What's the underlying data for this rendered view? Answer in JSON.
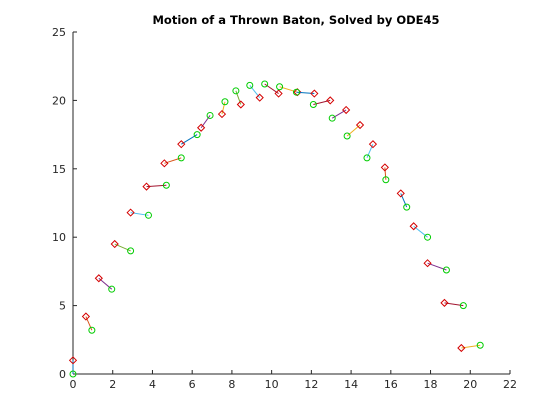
{
  "chart_data": {
    "type": "line",
    "title": "Motion of a Thrown Baton, Solved by ODE45",
    "xlabel": "",
    "ylabel": "",
    "xlim": [
      0,
      22
    ],
    "ylim": [
      0,
      25
    ],
    "xticks": [
      0,
      2,
      4,
      6,
      8,
      10,
      12,
      14,
      16,
      18,
      20,
      22
    ],
    "yticks": [
      0,
      5,
      10,
      15,
      20,
      25
    ],
    "grid": false,
    "box": "open-top-right",
    "marker_colors": {
      "end_a": "#d40000",
      "end_b": "#00cc00"
    },
    "segments": [
      {
        "a": [
          0.0,
          1.0
        ],
        "b": [
          0.0,
          0.0
        ],
        "color": "#0072bd"
      },
      {
        "a": [
          0.65,
          4.2
        ],
        "b": [
          0.95,
          3.2
        ],
        "color": "#d95319"
      },
      {
        "a": [
          1.3,
          7.0
        ],
        "b": [
          1.95,
          6.2
        ],
        "color": "#7e2f8e"
      },
      {
        "a": [
          2.1,
          9.5
        ],
        "b": [
          2.9,
          9.0
        ],
        "color": "#77ac30"
      },
      {
        "a": [
          2.9,
          11.8
        ],
        "b": [
          3.8,
          11.6
        ],
        "color": "#4dbeee"
      },
      {
        "a": [
          3.7,
          13.7
        ],
        "b": [
          4.7,
          13.8
        ],
        "color": "#a2142f"
      },
      {
        "a": [
          4.6,
          15.4
        ],
        "b": [
          5.45,
          15.8
        ],
        "color": "#d95319"
      },
      {
        "a": [
          5.45,
          16.8
        ],
        "b": [
          6.25,
          17.5
        ],
        "color": "#0072bd"
      },
      {
        "a": [
          6.45,
          18.0
        ],
        "b": [
          6.9,
          18.9
        ],
        "color": "#7e2f8e"
      },
      {
        "a": [
          7.5,
          19.0
        ],
        "b": [
          7.65,
          19.9
        ],
        "color": "#edb120"
      },
      {
        "a": [
          8.45,
          19.7
        ],
        "b": [
          8.2,
          20.7
        ],
        "color": "#77ac30"
      },
      {
        "a": [
          9.4,
          20.2
        ],
        "b": [
          8.9,
          21.1
        ],
        "color": "#4dbeee"
      },
      {
        "a": [
          10.35,
          20.5
        ],
        "b": [
          9.65,
          21.2
        ],
        "color": "#a2142f"
      },
      {
        "a": [
          11.3,
          20.6
        ],
        "b": [
          10.4,
          21.0
        ],
        "color": "#edb120"
      },
      {
        "a": [
          12.15,
          20.5
        ],
        "b": [
          11.25,
          20.6
        ],
        "color": "#0072bd"
      },
      {
        "a": [
          12.95,
          20.0
        ],
        "b": [
          12.1,
          19.7
        ],
        "color": "#a2142f"
      },
      {
        "a": [
          13.75,
          19.3
        ],
        "b": [
          13.05,
          18.7
        ],
        "color": "#7e2f8e"
      },
      {
        "a": [
          14.45,
          18.2
        ],
        "b": [
          13.8,
          17.4
        ],
        "color": "#edb120"
      },
      {
        "a": [
          15.1,
          16.8
        ],
        "b": [
          14.8,
          15.8
        ],
        "color": "#4dbeee"
      },
      {
        "a": [
          15.7,
          15.1
        ],
        "b": [
          15.75,
          14.2
        ],
        "color": "#d95319"
      },
      {
        "a": [
          16.5,
          13.2
        ],
        "b": [
          16.8,
          12.2
        ],
        "color": "#0072bd"
      },
      {
        "a": [
          17.15,
          10.8
        ],
        "b": [
          17.85,
          10.0
        ],
        "color": "#4dbeee"
      },
      {
        "a": [
          17.85,
          8.1
        ],
        "b": [
          18.8,
          7.6
        ],
        "color": "#7e2f8e"
      },
      {
        "a": [
          18.7,
          5.2
        ],
        "b": [
          19.65,
          5.0
        ],
        "color": "#a2142f"
      },
      {
        "a": [
          19.55,
          1.9
        ],
        "b": [
          20.5,
          2.1
        ],
        "color": "#edb120"
      }
    ]
  }
}
